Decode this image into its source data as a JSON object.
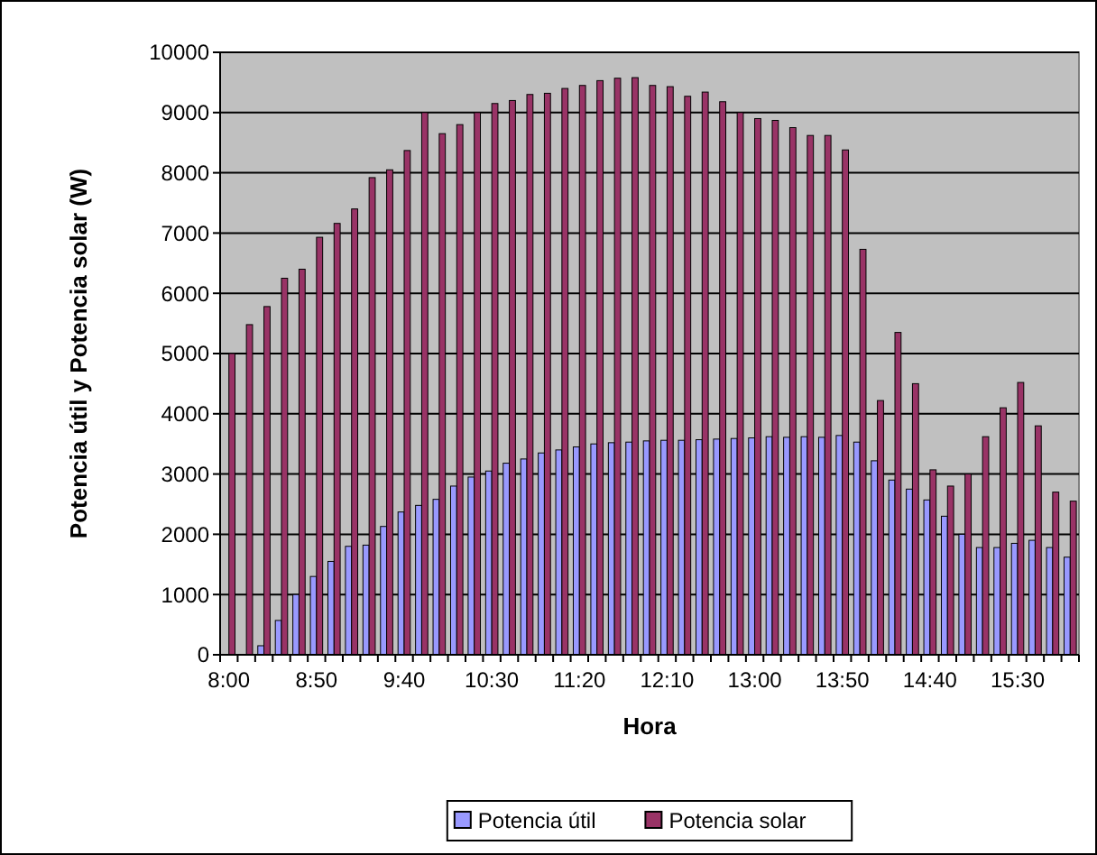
{
  "chart_data": {
    "type": "bar",
    "xlabel": "Hora",
    "ylabel": "Potencia útil y Potencia solar (W)",
    "categories": [
      "8:00",
      null,
      null,
      null,
      null,
      "8:50",
      null,
      null,
      null,
      null,
      "9:40",
      null,
      null,
      null,
      null,
      "10:30",
      null,
      null,
      null,
      null,
      "11:20",
      null,
      null,
      null,
      null,
      "12:10",
      null,
      null,
      null,
      null,
      "13:00",
      null,
      null,
      null,
      null,
      "13:50",
      null,
      null,
      null,
      null,
      "14:40",
      null,
      null,
      null,
      null,
      "15:30",
      null,
      null,
      null
    ],
    "series": [
      {
        "name": "Potencia útil",
        "color": "#9999ff",
        "values": [
          0,
          0,
          150,
          570,
          1000,
          1300,
          1550,
          1800,
          1820,
          2130,
          2370,
          2480,
          2580,
          2800,
          2950,
          3050,
          3180,
          3250,
          3350,
          3400,
          3450,
          3500,
          3520,
          3530,
          3550,
          3560,
          3560,
          3570,
          3580,
          3590,
          3600,
          3620,
          3610,
          3620,
          3610,
          3640,
          3530,
          3220,
          2900,
          2750,
          2570,
          2300,
          2000,
          1780,
          1780,
          1850,
          1900,
          1780,
          1620
        ]
      },
      {
        "name": "Potencia solar",
        "color": "#993366",
        "values": [
          5000,
          5480,
          5780,
          6250,
          6400,
          6930,
          7160,
          7400,
          7920,
          8050,
          8370,
          9000,
          8650,
          8800,
          9000,
          9150,
          9200,
          9300,
          9320,
          9400,
          9450,
          9530,
          9570,
          9580,
          9450,
          9430,
          9270,
          9340,
          9180,
          9000,
          8900,
          8870,
          8750,
          8620,
          8620,
          8380,
          6730,
          4220,
          5350,
          4500,
          3070,
          2800,
          3000,
          3620,
          4100,
          4520,
          3800,
          2700,
          2550
        ]
      }
    ],
    "ylim": [
      0,
      10000
    ],
    "yticks": [
      0,
      1000,
      2000,
      3000,
      4000,
      5000,
      6000,
      7000,
      8000,
      9000,
      10000
    ],
    "grid": "y",
    "legend": "bottom"
  }
}
